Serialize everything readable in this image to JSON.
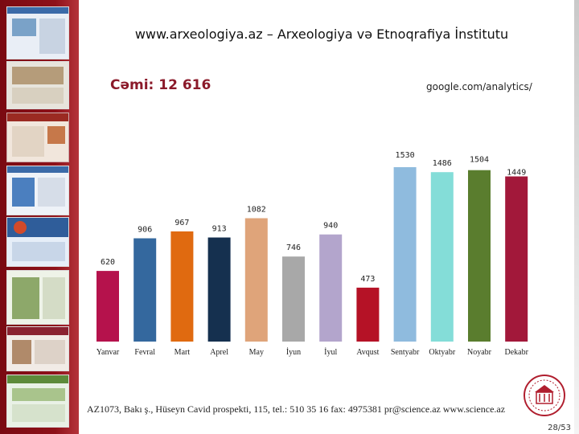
{
  "header": {
    "title": "www.arxeologiya.az – Arxeologiya və Etnoqrafiya İnstitutu",
    "total_label": "Cəmi: 12 616",
    "source": "google.com/analytics/"
  },
  "chart_data": {
    "type": "bar",
    "categories": [
      "Yanvar",
      "Fevral",
      "Mart",
      "Aprel",
      "May",
      "İyun",
      "İyul",
      "Avqust",
      "Sentyabr",
      "Oktyabr",
      "Noyabr",
      "Dekabr"
    ],
    "values": [
      620,
      906,
      967,
      913,
      1082,
      746,
      940,
      473,
      1530,
      1486,
      1504,
      1449
    ],
    "value_labels": [
      "620",
      "906",
      "967",
      "913",
      "1082",
      "746",
      "940",
      "473",
      "1530",
      "1486",
      "1504",
      "1449"
    ],
    "colors": [
      "#b5124c",
      "#34689e",
      "#e06a10",
      "#15304f",
      "#dfa47a",
      "#a8a8a8",
      "#b3a5cc",
      "#b51226",
      "#8fbbde",
      "#84ddd8",
      "#5a7d2e",
      "#a2183a"
    ],
    "ylim": [
      0,
      1600
    ],
    "grid": false,
    "legend": "none"
  },
  "footer": {
    "address": "AZ1073, Bakı ş., Hüseyn Cavid prospekti, 115, tel.: 510 35 16  fax: 4975381  pr@science.az  www.science.az",
    "page": "28/53"
  },
  "icons": {
    "logo": "academy-seal-icon"
  }
}
